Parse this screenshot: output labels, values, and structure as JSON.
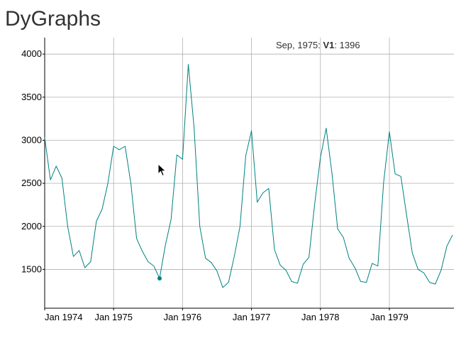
{
  "title": "DyGraphs",
  "legend": {
    "date": "Sep, 1975",
    "series": "V1",
    "value": "1396"
  },
  "colors": {
    "series": "#008080",
    "grid": "#b0b0b0",
    "axis": "#000000"
  },
  "chart_data": {
    "type": "line",
    "title": "DyGraphs",
    "xlabel": "",
    "ylabel": "",
    "x_start": "1974-01",
    "x_frequency": "monthly",
    "ylim": [
      1050,
      4150
    ],
    "y_ticks": [
      "1500",
      "2000",
      "2500",
      "3000",
      "3500",
      "4000"
    ],
    "x_ticks": [
      "Jan 1974",
      "Jan 1975",
      "Jan 1976",
      "Jan 1977",
      "Jan 1978",
      "Jan 1979"
    ],
    "grid": true,
    "highlight": {
      "date": "1975-09",
      "value": 1396
    },
    "series": [
      {
        "name": "V1",
        "values": [
          3030,
          2540,
          2700,
          2560,
          2000,
          1650,
          1720,
          1520,
          1590,
          2060,
          2200,
          2500,
          2930,
          2890,
          2930,
          2500,
          1860,
          1710,
          1590,
          1540,
          1396,
          1780,
          2080,
          2830,
          2780,
          3880,
          3150,
          2000,
          1630,
          1580,
          1480,
          1290,
          1350,
          1650,
          2000,
          2820,
          3110,
          2280,
          2390,
          2440,
          1730,
          1550,
          1490,
          1360,
          1340,
          1560,
          1640,
          2260,
          2800,
          3140,
          2620,
          1970,
          1870,
          1630,
          1520,
          1360,
          1350,
          1570,
          1540,
          2510,
          3100,
          2610,
          2580,
          2130,
          1690,
          1500,
          1460,
          1350,
          1330,
          1490,
          1770,
          1900
        ]
      }
    ]
  }
}
